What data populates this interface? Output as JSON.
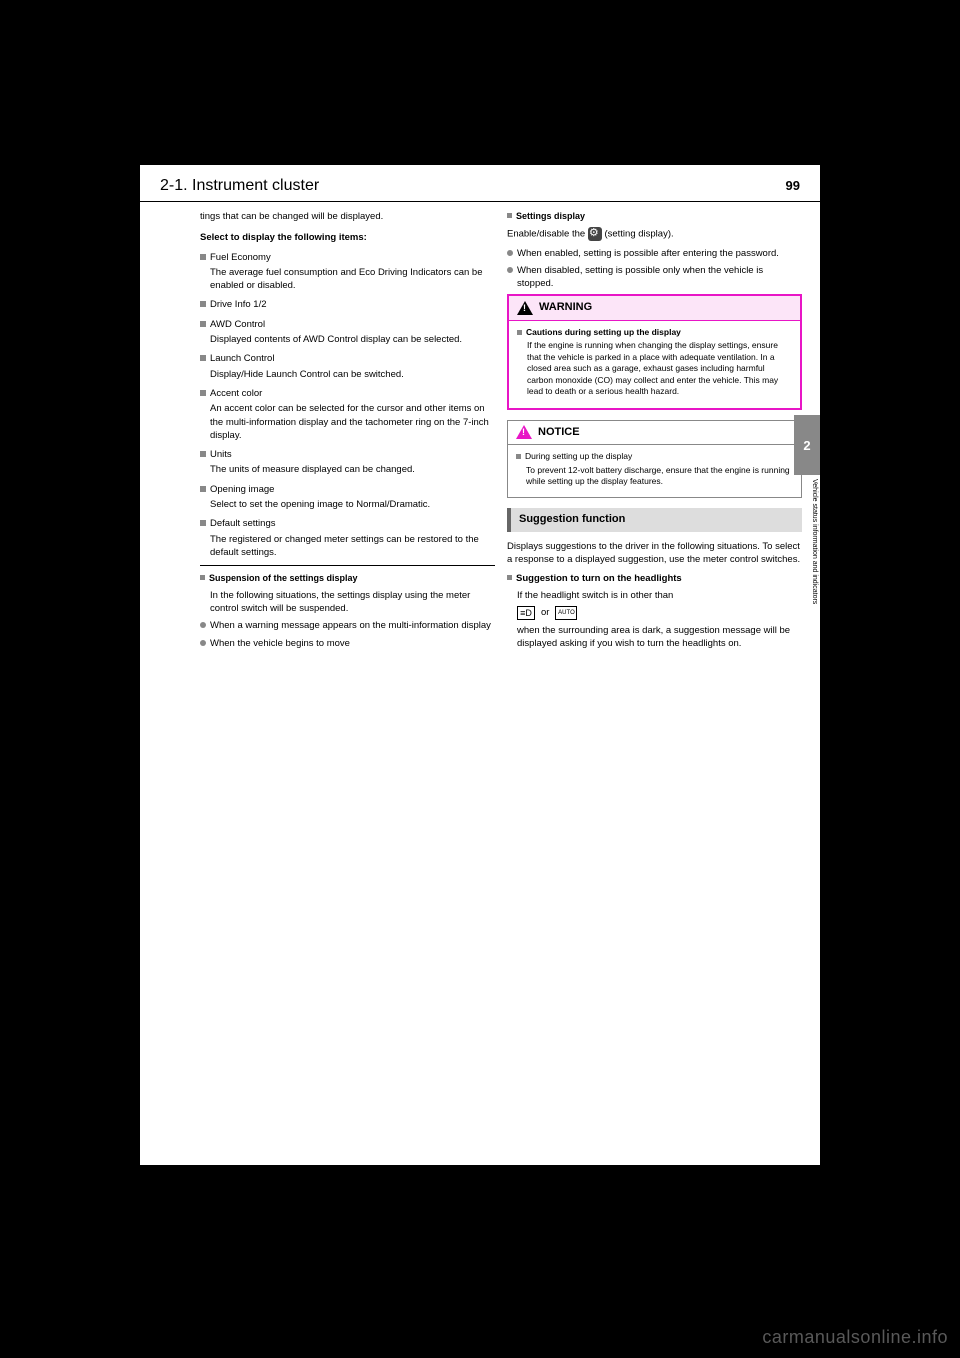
{
  "header": {
    "page_number": "99",
    "chapter": "2-1.  Instrument cluster"
  },
  "side_tab": {
    "number": "2",
    "label": "Vehicle status information and indicators"
  },
  "left_column": {
    "intro": "tings that can be changed will be displayed.",
    "select_label": "Select to display the following items:",
    "items": [
      {
        "title": "Fuel Economy",
        "desc": "The average fuel consumption and Eco Driving Indicators can be enabled or disabled."
      },
      {
        "title": "Drive Info 1/2",
        "desc": ""
      },
      {
        "title": "AWD Control",
        "desc": "Displayed contents of AWD Control display can be selected."
      },
      {
        "title": "Launch Control",
        "desc": "Display/Hide Launch Control can be switched."
      },
      {
        "title": "Accent color",
        "desc": "An accent color can be selected for the cursor and other items on the multi-information display and the tachometer ring on the 7-inch display."
      },
      {
        "title": "Units",
        "desc": "The units of measure displayed can be changed."
      },
      {
        "title": "Opening image",
        "desc": "Select to set the opening image to Normal/Dramatic."
      },
      {
        "title": "Default settings",
        "desc": "The registered or changed meter settings can be restored to the default settings."
      }
    ],
    "subsection_title": "Suspension of the settings display",
    "subsection_intro": "In the following situations, the settings display using the meter control switch will be suspended.",
    "sub_bullets": [
      "When a warning message appears on the multi-information display",
      "When the vehicle begins to move"
    ]
  },
  "right_column": {
    "settings_intro_title": "Settings display",
    "settings_intro": "Enable/disable the",
    "settings_icon_text": "(setting display).",
    "setting_bullets": [
      "When enabled, setting is possible after entering the password.",
      "When disabled, setting is possible only when the vehicle is stopped."
    ],
    "warning": {
      "title": "WARNING",
      "item_title": "Cautions during setting up the display",
      "body": "If the engine is running when changing the display settings, ensure that the vehicle is parked in a place with adequate ventilation. In a closed area such as a garage, exhaust gases including harmful carbon monoxide (CO) may collect and enter the vehicle. This may lead to death or a serious health hazard."
    },
    "notice": {
      "title": "NOTICE",
      "item_title": "During setting up the display",
      "body": "To prevent 12-volt battery discharge, ensure that the engine is running while setting up the display features."
    },
    "suggestion": {
      "header": "Suggestion function",
      "para": "Displays suggestions to the driver in the following situations. To select a response to a displayed suggestion, use the meter control switches.",
      "item_title": "Suggestion to turn on the headlights",
      "item_desc": "If the headlight switch is in other than",
      "item_desc2": "when the surrounding area is dark, a suggestion message will be displayed asking if you wish to turn the headlights on."
    }
  },
  "watermark": "carmanualsonline.info",
  "colors": {
    "warning_border": "#e815c6",
    "warning_bg": "#fce5f8",
    "gray_bullet": "#888",
    "side_tab_bg": "#888"
  }
}
